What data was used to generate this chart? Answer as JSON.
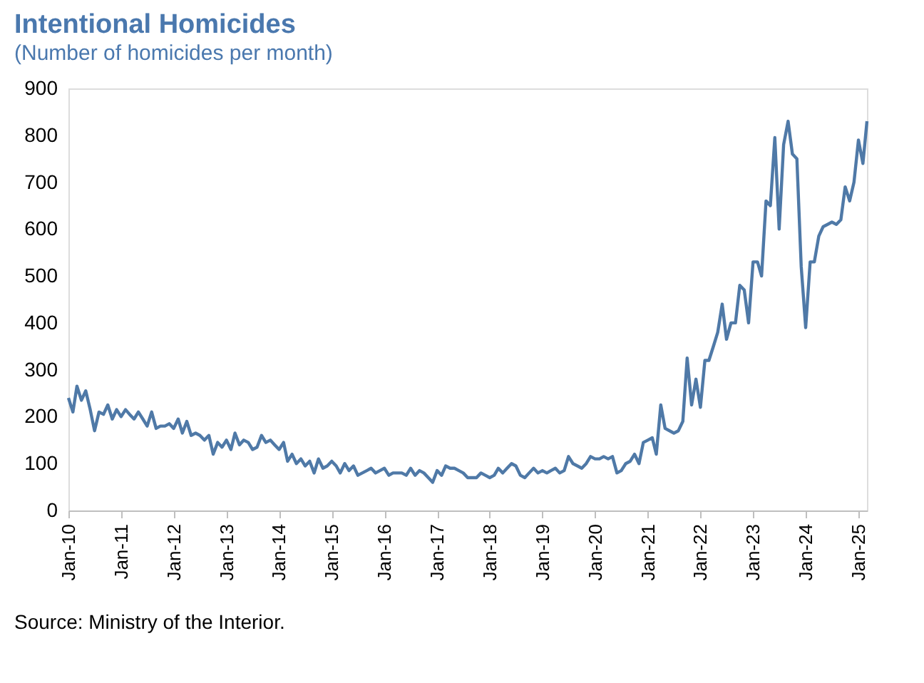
{
  "chart_data": {
    "type": "line",
    "title": "Intentional Homicides",
    "subtitle": "(Number of homicides per month)",
    "annotations": [
      "Source: Ministry of the Interior."
    ],
    "x": [
      "2010-01",
      "2010-02",
      "2010-03",
      "2010-04",
      "2010-05",
      "2010-06",
      "2010-07",
      "2010-08",
      "2010-09",
      "2010-10",
      "2010-11",
      "2010-12",
      "2011-01",
      "2011-02",
      "2011-03",
      "2011-04",
      "2011-05",
      "2011-06",
      "2011-07",
      "2011-08",
      "2011-09",
      "2011-10",
      "2011-11",
      "2011-12",
      "2012-01",
      "2012-02",
      "2012-03",
      "2012-04",
      "2012-05",
      "2012-06",
      "2012-07",
      "2012-08",
      "2012-09",
      "2012-10",
      "2012-11",
      "2012-12",
      "2013-01",
      "2013-02",
      "2013-03",
      "2013-04",
      "2013-05",
      "2013-06",
      "2013-07",
      "2013-08",
      "2013-09",
      "2013-10",
      "2013-11",
      "2013-12",
      "2014-01",
      "2014-02",
      "2014-03",
      "2014-04",
      "2014-05",
      "2014-06",
      "2014-07",
      "2014-08",
      "2014-09",
      "2014-10",
      "2014-11",
      "2014-12",
      "2015-01",
      "2015-02",
      "2015-03",
      "2015-04",
      "2015-05",
      "2015-06",
      "2015-07",
      "2015-08",
      "2015-09",
      "2015-10",
      "2015-11",
      "2015-12",
      "2016-01",
      "2016-02",
      "2016-03",
      "2016-04",
      "2016-05",
      "2016-06",
      "2016-07",
      "2016-08",
      "2016-09",
      "2016-10",
      "2016-11",
      "2016-12",
      "2017-01",
      "2017-02",
      "2017-03",
      "2017-04",
      "2017-05",
      "2017-06",
      "2017-07",
      "2017-08",
      "2017-09",
      "2017-10",
      "2017-11",
      "2017-12",
      "2018-01",
      "2018-02",
      "2018-03",
      "2018-04",
      "2018-05",
      "2018-06",
      "2018-07",
      "2018-08",
      "2018-09",
      "2018-10",
      "2018-11",
      "2018-12",
      "2019-01",
      "2019-02",
      "2019-03",
      "2019-04",
      "2019-05",
      "2019-06",
      "2019-07",
      "2019-08",
      "2019-09",
      "2019-10",
      "2019-11",
      "2019-12",
      "2020-01",
      "2020-02",
      "2020-03",
      "2020-04",
      "2020-05",
      "2020-06",
      "2020-07",
      "2020-08",
      "2020-09",
      "2020-10",
      "2020-11",
      "2020-12",
      "2021-01",
      "2021-02",
      "2021-03",
      "2021-04",
      "2021-05",
      "2021-06",
      "2021-07",
      "2021-08",
      "2021-09",
      "2021-10",
      "2021-11",
      "2021-12",
      "2022-01",
      "2022-02",
      "2022-03",
      "2022-04",
      "2022-05",
      "2022-06",
      "2022-07",
      "2022-08",
      "2022-09",
      "2022-10",
      "2022-11",
      "2022-12",
      "2023-01",
      "2023-02",
      "2023-03",
      "2023-04",
      "2023-05",
      "2023-06",
      "2023-07",
      "2023-08",
      "2023-09",
      "2023-10",
      "2023-11",
      "2023-12",
      "2024-01",
      "2024-02",
      "2024-03",
      "2024-04",
      "2024-05",
      "2024-06",
      "2024-07",
      "2024-08",
      "2024-09",
      "2024-10",
      "2024-11",
      "2024-12",
      "2025-01",
      "2025-02",
      "2025-03"
    ],
    "series": [
      {
        "color": "#4f79a7",
        "values": [
          240,
          210,
          265,
          235,
          255,
          215,
          170,
          210,
          205,
          225,
          195,
          215,
          200,
          215,
          205,
          195,
          210,
          195,
          180,
          210,
          175,
          180,
          180,
          185,
          175,
          195,
          165,
          190,
          160,
          165,
          160,
          150,
          160,
          120,
          145,
          135,
          150,
          130,
          165,
          140,
          150,
          145,
          130,
          135,
          160,
          145,
          150,
          140,
          130,
          145,
          105,
          120,
          100,
          110,
          95,
          105,
          80,
          110,
          90,
          95,
          105,
          95,
          80,
          100,
          85,
          95,
          75,
          80,
          85,
          90,
          80,
          85,
          90,
          75,
          80,
          80,
          80,
          75,
          90,
          75,
          85,
          80,
          70,
          60,
          85,
          75,
          95,
          90,
          90,
          85,
          80,
          70,
          70,
          70,
          80,
          75,
          70,
          75,
          90,
          80,
          90,
          100,
          95,
          75,
          70,
          80,
          90,
          80,
          85,
          80,
          85,
          90,
          80,
          85,
          115,
          100,
          95,
          90,
          100,
          115,
          110,
          110,
          115,
          110,
          115,
          80,
          85,
          100,
          105,
          120,
          100,
          145,
          150,
          155,
          120,
          225,
          175,
          170,
          165,
          170,
          190,
          325,
          225,
          280,
          220,
          320,
          320,
          350,
          380,
          440,
          365,
          400,
          400,
          480,
          470,
          400,
          530,
          530,
          500,
          660,
          650,
          795,
          600,
          780,
          830,
          760,
          750,
          520,
          390,
          530,
          530,
          585,
          605,
          610,
          615,
          610,
          620,
          690,
          660,
          700,
          790,
          740,
          830
        ]
      }
    ],
    "xlim": [
      "2010-01",
      "2025-03"
    ],
    "xticks": [
      {
        "value": "2010-01",
        "label": "Jan-10"
      },
      {
        "value": "2011-01",
        "label": "Jan-11"
      },
      {
        "value": "2012-01",
        "label": "Jan-12"
      },
      {
        "value": "2013-01",
        "label": "Jan-13"
      },
      {
        "value": "2014-01",
        "label": "Jan-14"
      },
      {
        "value": "2015-01",
        "label": "Jan-15"
      },
      {
        "value": "2016-01",
        "label": "Jan-16"
      },
      {
        "value": "2017-01",
        "label": "Jan-17"
      },
      {
        "value": "2018-01",
        "label": "Jan-18"
      },
      {
        "value": "2019-01",
        "label": "Jan-19"
      },
      {
        "value": "2020-01",
        "label": "Jan-20"
      },
      {
        "value": "2021-01",
        "label": "Jan-21"
      },
      {
        "value": "2022-01",
        "label": "Jan-22"
      },
      {
        "value": "2023-01",
        "label": "Jan-23"
      },
      {
        "value": "2024-01",
        "label": "Jan-24"
      },
      {
        "value": "2025-01",
        "label": "Jan-25"
      }
    ],
    "ylim": [
      0,
      900
    ],
    "yticks": [
      0,
      100,
      200,
      300,
      400,
      500,
      600,
      700,
      800,
      900
    ],
    "grid": false,
    "marker": "none",
    "line_style": "solid"
  }
}
